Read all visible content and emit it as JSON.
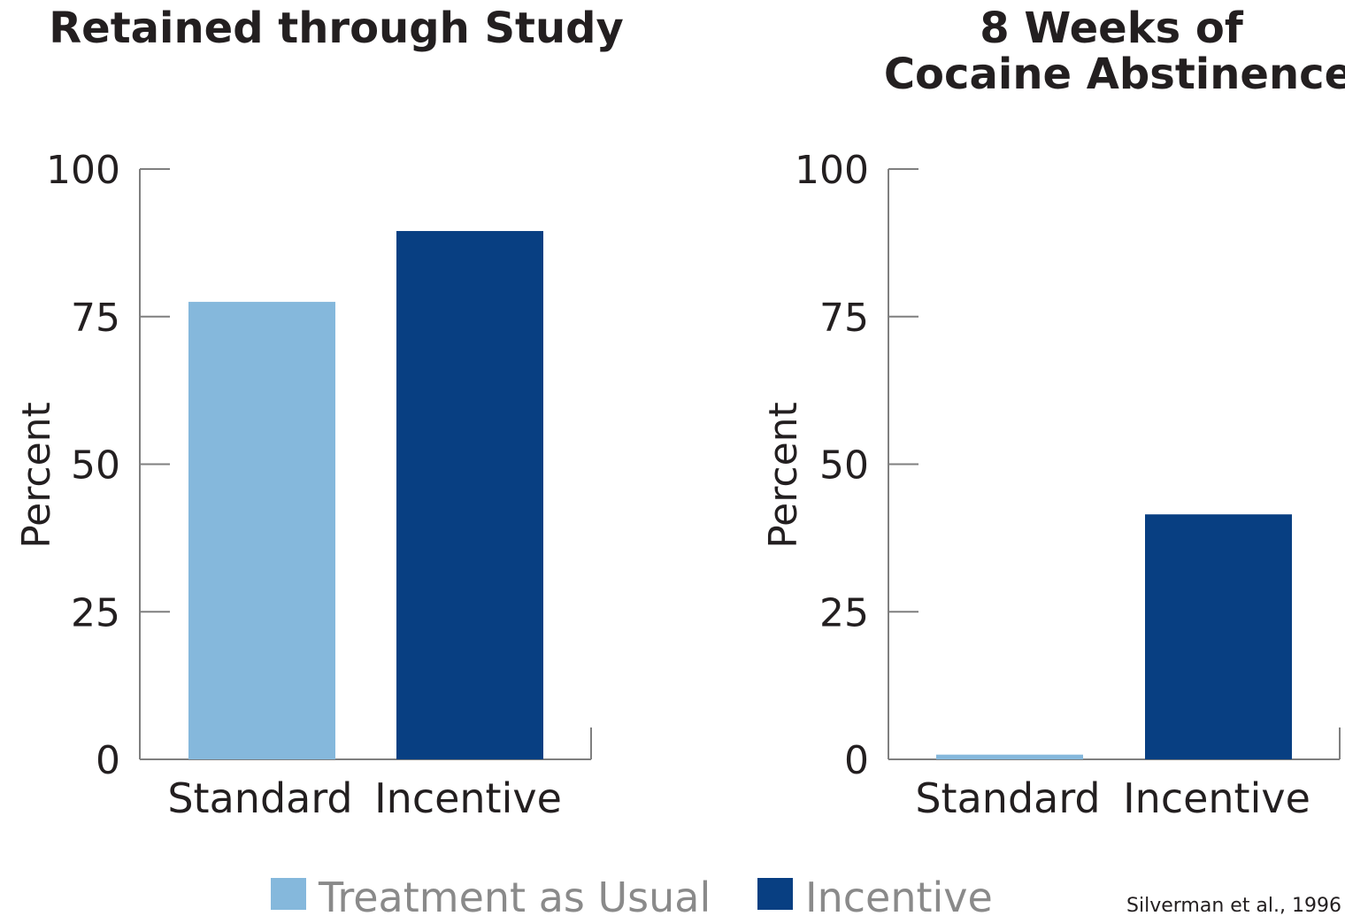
{
  "colors": {
    "treatment_as_usual": "#85b8dc",
    "incentive": "#083f82",
    "axis": "#7f7f7f"
  },
  "chart_data": [
    {
      "type": "bar",
      "title_lines": [
        "Retained through Study"
      ],
      "ylabel": "Percent",
      "xlabel": "",
      "categories": [
        "Standard",
        "Incentive"
      ],
      "values": [
        77.5,
        89.5
      ],
      "ylim": [
        0,
        100
      ],
      "yticks": [
        0,
        25,
        50,
        75,
        100
      ],
      "bar_colors": [
        "#85b8dc",
        "#083f82"
      ]
    },
    {
      "type": "bar",
      "title_lines": [
        "8 Weeks of",
        "Cocaine Abstinence"
      ],
      "ylabel": "Percent",
      "xlabel": "",
      "categories": [
        "Standard",
        "Incentive"
      ],
      "values": [
        0.8,
        41.5
      ],
      "ylim": [
        0,
        100
      ],
      "yticks": [
        0,
        25,
        50,
        75,
        100
      ],
      "bar_colors": [
        "#85b8dc",
        "#083f82"
      ]
    }
  ],
  "legend": [
    {
      "label": "Treatment as Usual",
      "color": "#85b8dc"
    },
    {
      "label": "Incentive",
      "color": "#083f82"
    }
  ],
  "source": "Silverman et al., 1996"
}
